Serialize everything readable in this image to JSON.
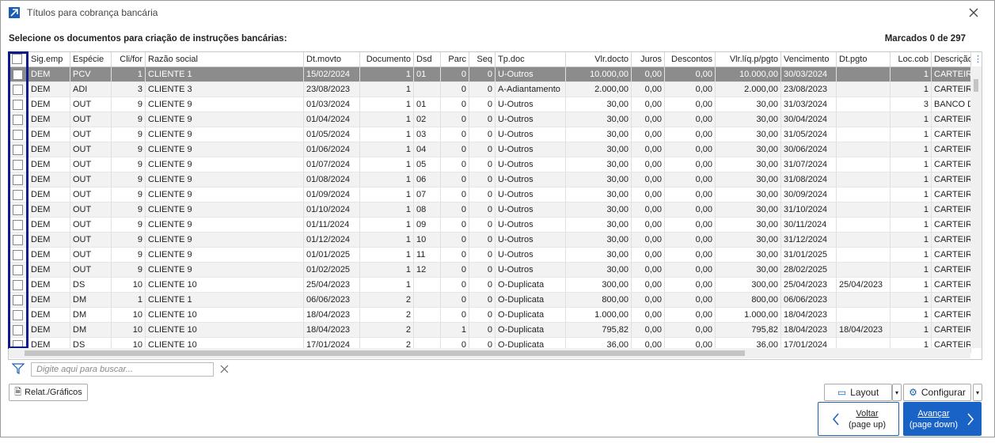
{
  "window": {
    "title": "Títulos para cobrança bancária"
  },
  "header": {
    "instruction": "Selecione os documentos para criação de instruções bancárias:",
    "marked": "Marcados 0 de 297"
  },
  "table": {
    "columns": [
      "Sig.emp",
      "Espécie",
      "Cli/for",
      "Razão social",
      "Dt.movto",
      "Documento",
      "Dsd",
      "Parc",
      "Seq",
      "Tp.doc",
      "Vlr.docto",
      "Juros",
      "Descontos",
      "Vlr.líq.p/pgto",
      "Vencimento",
      "Dt.pgto",
      "Loc.cob",
      "Descrição"
    ],
    "rows": [
      [
        "DEM",
        "PCV",
        "1",
        "CLIENTE 1",
        "15/02/2024",
        "1",
        "01",
        "0",
        "0",
        "U-Outros",
        "10.000,00",
        "0,00",
        "0,00",
        "10.000,00",
        "30/03/2024",
        null,
        "1",
        "CARTEIRA"
      ],
      [
        "DEM",
        "ADI",
        "3",
        "CLIENTE 3",
        "23/08/2023",
        "1",
        null,
        "0",
        "0",
        "A-Adiantamento",
        "2.000,00",
        "0,00",
        "0,00",
        "2.000,00",
        "23/08/2023",
        null,
        "1",
        "CARTEIRA"
      ],
      [
        "DEM",
        "OUT",
        "9",
        "CLIENTE 9",
        "01/03/2024",
        "1",
        "01",
        "0",
        "0",
        "U-Outros",
        "30,00",
        "0,00",
        "0,00",
        "30,00",
        "31/03/2024",
        null,
        "3",
        "BANCO D"
      ],
      [
        "DEM",
        "OUT",
        "9",
        "CLIENTE 9",
        "01/04/2024",
        "1",
        "02",
        "0",
        "0",
        "U-Outros",
        "30,00",
        "0,00",
        "0,00",
        "30,00",
        "30/04/2024",
        null,
        "1",
        "CARTEIRA"
      ],
      [
        "DEM",
        "OUT",
        "9",
        "CLIENTE 9",
        "01/05/2024",
        "1",
        "03",
        "0",
        "0",
        "U-Outros",
        "30,00",
        "0,00",
        "0,00",
        "30,00",
        "31/05/2024",
        null,
        "1",
        "CARTEIRA"
      ],
      [
        "DEM",
        "OUT",
        "9",
        "CLIENTE 9",
        "01/06/2024",
        "1",
        "04",
        "0",
        "0",
        "U-Outros",
        "30,00",
        "0,00",
        "0,00",
        "30,00",
        "30/06/2024",
        null,
        "1",
        "CARTEIRA"
      ],
      [
        "DEM",
        "OUT",
        "9",
        "CLIENTE 9",
        "01/07/2024",
        "1",
        "05",
        "0",
        "0",
        "U-Outros",
        "30,00",
        "0,00",
        "0,00",
        "30,00",
        "31/07/2024",
        null,
        "1",
        "CARTEIRA"
      ],
      [
        "DEM",
        "OUT",
        "9",
        "CLIENTE 9",
        "01/08/2024",
        "1",
        "06",
        "0",
        "0",
        "U-Outros",
        "30,00",
        "0,00",
        "0,00",
        "30,00",
        "31/08/2024",
        null,
        "1",
        "CARTEIRA"
      ],
      [
        "DEM",
        "OUT",
        "9",
        "CLIENTE 9",
        "01/09/2024",
        "1",
        "07",
        "0",
        "0",
        "U-Outros",
        "30,00",
        "0,00",
        "0,00",
        "30,00",
        "30/09/2024",
        null,
        "1",
        "CARTEIRA"
      ],
      [
        "DEM",
        "OUT",
        "9",
        "CLIENTE 9",
        "01/10/2024",
        "1",
        "08",
        "0",
        "0",
        "U-Outros",
        "30,00",
        "0,00",
        "0,00",
        "30,00",
        "31/10/2024",
        null,
        "1",
        "CARTEIRA"
      ],
      [
        "DEM",
        "OUT",
        "9",
        "CLIENTE 9",
        "01/11/2024",
        "1",
        "09",
        "0",
        "0",
        "U-Outros",
        "30,00",
        "0,00",
        "0,00",
        "30,00",
        "30/11/2024",
        null,
        "1",
        "CARTEIRA"
      ],
      [
        "DEM",
        "OUT",
        "9",
        "CLIENTE 9",
        "01/12/2024",
        "1",
        "10",
        "0",
        "0",
        "U-Outros",
        "30,00",
        "0,00",
        "0,00",
        "30,00",
        "31/12/2024",
        null,
        "1",
        "CARTEIRA"
      ],
      [
        "DEM",
        "OUT",
        "9",
        "CLIENTE 9",
        "01/01/2025",
        "1",
        "11",
        "0",
        "0",
        "U-Outros",
        "30,00",
        "0,00",
        "0,00",
        "30,00",
        "31/01/2025",
        null,
        "1",
        "CARTEIRA"
      ],
      [
        "DEM",
        "OUT",
        "9",
        "CLIENTE 9",
        "01/02/2025",
        "1",
        "12",
        "0",
        "0",
        "U-Outros",
        "30,00",
        "0,00",
        "0,00",
        "30,00",
        "28/02/2025",
        null,
        "1",
        "CARTEIRA"
      ],
      [
        "DEM",
        "DS",
        "10",
        "CLIENTE 10",
        "25/04/2023",
        "1",
        null,
        "0",
        "0",
        "O-Duplicata",
        "300,00",
        "0,00",
        "0,00",
        "300,00",
        "25/04/2023",
        "25/04/2023",
        "1",
        "CARTEIRA"
      ],
      [
        "DEM",
        "DM",
        "1",
        "CLIENTE 1",
        "06/06/2023",
        "2",
        null,
        "0",
        "0",
        "O-Duplicata",
        "800,00",
        "0,00",
        "0,00",
        "800,00",
        "06/06/2023",
        null,
        "1",
        "CARTEIRA"
      ],
      [
        "DEM",
        "DM",
        "10",
        "CLIENTE 10",
        "18/04/2023",
        "2",
        null,
        "0",
        "0",
        "O-Duplicata",
        "1.000,00",
        "0,00",
        "0,00",
        "1.000,00",
        "18/04/2023",
        null,
        "1",
        "CARTEIRA"
      ],
      [
        "DEM",
        "DM",
        "10",
        "CLIENTE 10",
        "18/04/2023",
        "2",
        null,
        "1",
        "0",
        "O-Duplicata",
        "795,82",
        "0,00",
        "0,00",
        "795,82",
        "18/04/2023",
        "18/04/2023",
        "1",
        "CARTEIRA"
      ],
      [
        "DEM",
        "DS",
        "10",
        "CLIENTE 10",
        "17/01/2024",
        "2",
        null,
        "0",
        "0",
        "O-Duplicata",
        "36,00",
        "0,00",
        "0,00",
        "36,00",
        "17/01/2024",
        null,
        "1",
        "CARTEIRA"
      ]
    ]
  },
  "search": {
    "placeholder": "Digite aqui para buscar..."
  },
  "buttons": {
    "report": "Relat./Gráficos",
    "layout": "Layout",
    "configure": "Configurar",
    "back": "Voltar",
    "back_hint": "(page up)",
    "next": "Avançar",
    "next_hint": "(page down)"
  }
}
